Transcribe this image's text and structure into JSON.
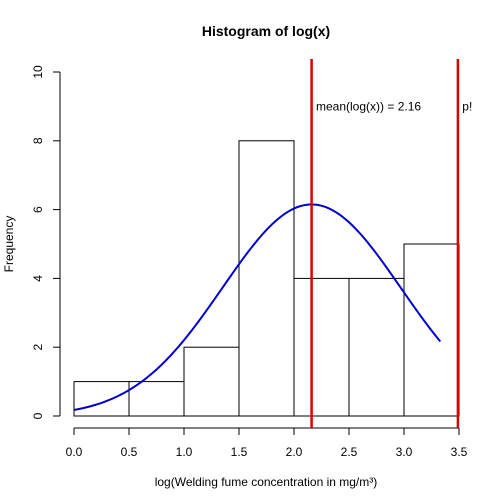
{
  "chart_data": {
    "type": "bar",
    "title": "Histogram of log(x)",
    "xlabel": "log(Welding fume concentration in mg/m³)",
    "ylabel": "Frequency",
    "xlim": [
      0,
      3.5
    ],
    "ylim": [
      0,
      10
    ],
    "x_ticks": [
      "0.0",
      "0.5",
      "1.0",
      "1.5",
      "2.0",
      "2.5",
      "3.0",
      "3.5"
    ],
    "y_ticks": [
      "0",
      "2",
      "4",
      "6",
      "8",
      "10"
    ],
    "bins": [
      {
        "from": 0.0,
        "to": 0.5,
        "count": 1
      },
      {
        "from": 0.5,
        "to": 1.0,
        "count": 1
      },
      {
        "from": 1.0,
        "to": 1.5,
        "count": 2
      },
      {
        "from": 1.5,
        "to": 2.0,
        "count": 8
      },
      {
        "from": 2.0,
        "to": 2.5,
        "count": 4
      },
      {
        "from": 2.5,
        "to": 3.0,
        "count": 4
      },
      {
        "from": 3.0,
        "to": 3.5,
        "count": 5
      }
    ],
    "density_curve": {
      "color": "#0000cc",
      "x_range": [
        0.0,
        3.33
      ],
      "mean": 2.16,
      "sd": 0.81,
      "peak": 6.15
    },
    "vlines": [
      {
        "x": 2.16,
        "color": "#dd0000"
      },
      {
        "x": 3.49,
        "color": "#dd0000"
      }
    ],
    "annotations": [
      {
        "text": "mean(log(x)) =  2.16",
        "x": 2.2,
        "y": 9.0
      },
      {
        "text": "p!",
        "x": 3.53,
        "y": 9.0
      }
    ],
    "grid": false,
    "grid_on": false
  }
}
